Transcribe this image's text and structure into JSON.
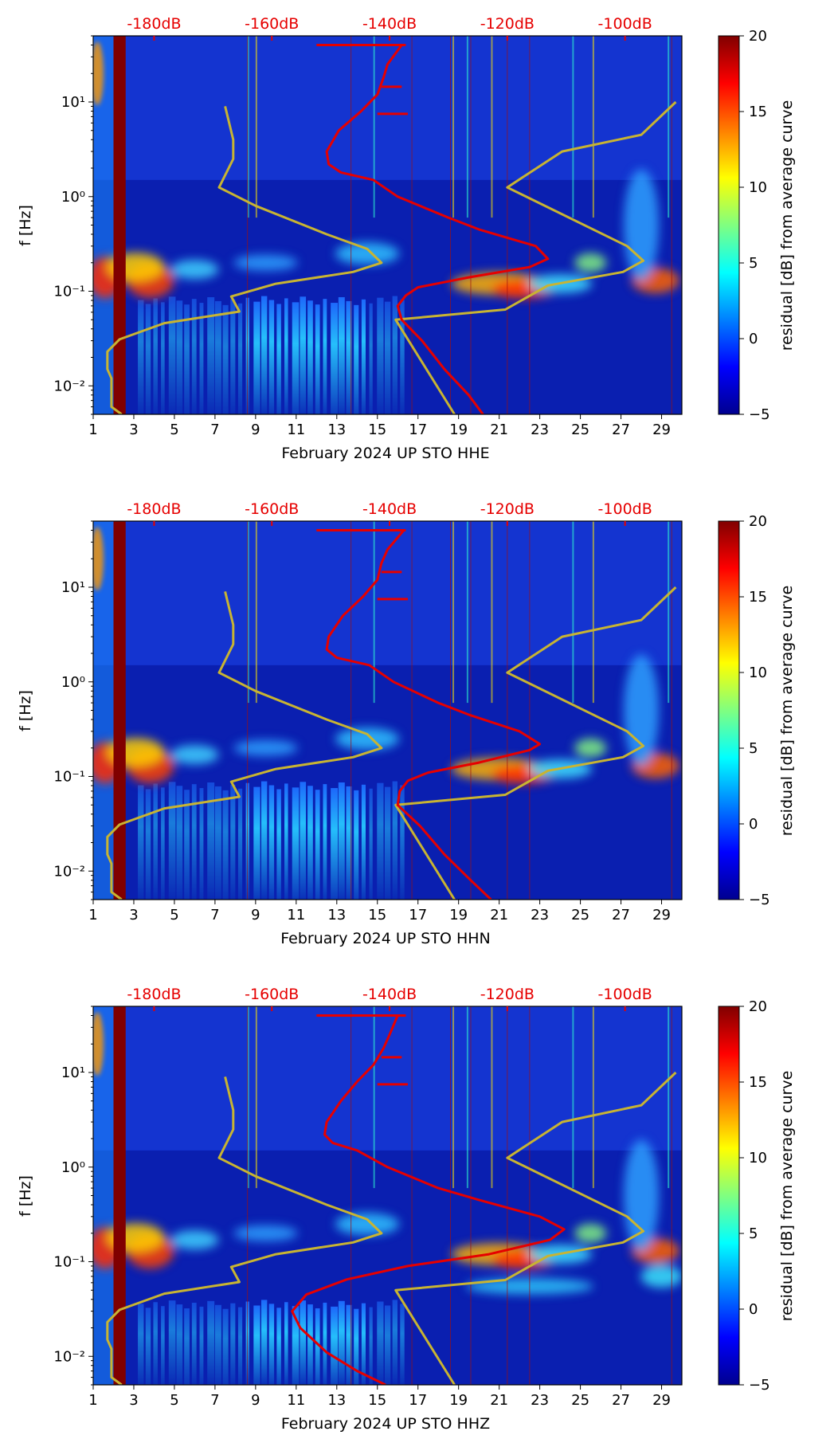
{
  "figure": {
    "colorbar_label": "residual [dB] from average curve",
    "ylabel": "f [Hz]"
  },
  "chart_data": [
    {
      "type": "heatmap",
      "title": "",
      "xlabel": "February 2024 UP STO  HHE",
      "ylabel": "f [Hz]",
      "x_ticks": [
        1,
        3,
        5,
        7,
        9,
        11,
        13,
        15,
        17,
        19,
        21,
        23,
        25,
        27,
        29
      ],
      "x_range": [
        1,
        30
      ],
      "y_ticks": [
        0.01,
        0.1,
        1,
        10
      ],
      "y_tick_labels": [
        "10⁻²",
        "10⁻¹",
        "10⁰",
        "10¹"
      ],
      "y_range": [
        0.005,
        50
      ],
      "top_axis_labels": [
        "-180dB",
        "-160dB",
        "-140dB",
        "-120dB",
        "-100dB"
      ],
      "top_axis_positions": [
        4,
        9.8,
        15.6,
        21.4,
        27.2
      ],
      "colorbar": {
        "label": "residual [dB] from average curve",
        "ticks": [
          -5,
          0,
          5,
          10,
          15,
          20
        ],
        "range": [
          -5,
          20
        ]
      },
      "series": [
        {
          "name": "NLNM/NHNM reference (low)",
          "color": "#c8b432",
          "points": [
            [
              2.4,
              0.005
            ],
            [
              1.9,
              0.006
            ],
            [
              1.9,
              0.012
            ],
            [
              1.7,
              0.015
            ],
            [
              1.7,
              0.023
            ],
            [
              2.3,
              0.031
            ],
            [
              4.5,
              0.046
            ],
            [
              8.2,
              0.061
            ],
            [
              7.8,
              0.088
            ],
            [
              10.0,
              0.12
            ],
            [
              13.8,
              0.16
            ],
            [
              15.2,
              0.2
            ],
            [
              14.5,
              0.28
            ],
            [
              12.5,
              0.4
            ],
            [
              9.0,
              0.8
            ],
            [
              7.2,
              1.25
            ],
            [
              7.9,
              2.5
            ],
            [
              7.9,
              4.0
            ],
            [
              7.5,
              9.0
            ]
          ]
        },
        {
          "name": "NLNM/NHNM reference (high)",
          "color": "#c8b432",
          "points": [
            [
              18.8,
              0.005
            ],
            [
              15.9,
              0.05
            ],
            [
              21.3,
              0.064
            ],
            [
              23.4,
              0.115
            ],
            [
              27.1,
              0.16
            ],
            [
              28.1,
              0.21
            ],
            [
              27.3,
              0.3
            ],
            [
              21.4,
              1.25
            ],
            [
              24.1,
              3.0
            ],
            [
              28.0,
              4.5
            ],
            [
              29.7,
              10.0
            ]
          ]
        },
        {
          "name": "median PSD curve",
          "color": "#e60000",
          "points": [
            [
              20.2,
              0.005
            ],
            [
              19.5,
              0.008
            ],
            [
              18.3,
              0.015
            ],
            [
              17.2,
              0.03
            ],
            [
              16.2,
              0.05
            ],
            [
              16.0,
              0.07
            ],
            [
              16.4,
              0.09
            ],
            [
              17.0,
              0.11
            ],
            [
              19.5,
              0.14
            ],
            [
              22.5,
              0.18
            ],
            [
              23.4,
              0.22
            ],
            [
              22.8,
              0.3
            ],
            [
              20.0,
              0.45
            ],
            [
              18.5,
              0.6
            ],
            [
              16.0,
              1.0
            ],
            [
              14.8,
              1.5
            ],
            [
              13.2,
              1.8
            ],
            [
              12.6,
              2.2
            ],
            [
              12.5,
              3.0
            ],
            [
              13.1,
              5.0
            ],
            [
              14.2,
              8.0
            ],
            [
              15.0,
              12.0
            ],
            [
              15.3,
              18.0
            ],
            [
              15.5,
              25.0
            ],
            [
              16.2,
              40.0
            ]
          ]
        }
      ]
    },
    {
      "type": "heatmap",
      "title": "",
      "xlabel": "February 2024 UP STO  HHN",
      "ylabel": "f [Hz]",
      "x_ticks": [
        1,
        3,
        5,
        7,
        9,
        11,
        13,
        15,
        17,
        19,
        21,
        23,
        25,
        27,
        29
      ],
      "x_range": [
        1,
        30
      ],
      "y_ticks": [
        0.01,
        0.1,
        1,
        10
      ],
      "y_tick_labels": [
        "10⁻²",
        "10⁻¹",
        "10⁰",
        "10¹"
      ],
      "y_range": [
        0.005,
        50
      ],
      "top_axis_labels": [
        "-180dB",
        "-160dB",
        "-140dB",
        "-120dB",
        "-100dB"
      ],
      "top_axis_positions": [
        4,
        9.8,
        15.6,
        21.4,
        27.2
      ],
      "colorbar": {
        "label": "residual [dB] from average curve",
        "ticks": [
          -5,
          0,
          5,
          10,
          15,
          20
        ],
        "range": [
          -5,
          20
        ]
      },
      "series": [
        {
          "name": "NLNM/NHNM reference (low)",
          "color": "#c8b432",
          "points": [
            [
              2.4,
              0.005
            ],
            [
              1.9,
              0.006
            ],
            [
              1.9,
              0.012
            ],
            [
              1.7,
              0.015
            ],
            [
              1.7,
              0.023
            ],
            [
              2.3,
              0.031
            ],
            [
              4.5,
              0.046
            ],
            [
              8.2,
              0.061
            ],
            [
              7.8,
              0.088
            ],
            [
              10.0,
              0.12
            ],
            [
              13.8,
              0.16
            ],
            [
              15.2,
              0.2
            ],
            [
              14.5,
              0.28
            ],
            [
              12.5,
              0.4
            ],
            [
              9.0,
              0.8
            ],
            [
              7.2,
              1.25
            ],
            [
              7.9,
              2.5
            ],
            [
              7.9,
              4.0
            ],
            [
              7.5,
              9.0
            ]
          ]
        },
        {
          "name": "NLNM/NHNM reference (high)",
          "color": "#c8b432",
          "points": [
            [
              18.8,
              0.005
            ],
            [
              15.9,
              0.05
            ],
            [
              21.3,
              0.064
            ],
            [
              23.4,
              0.115
            ],
            [
              27.1,
              0.16
            ],
            [
              28.1,
              0.21
            ],
            [
              27.3,
              0.3
            ],
            [
              21.4,
              1.25
            ],
            [
              24.1,
              3.0
            ],
            [
              28.0,
              4.5
            ],
            [
              29.7,
              10.0
            ]
          ]
        },
        {
          "name": "median PSD curve",
          "color": "#e60000",
          "points": [
            [
              20.6,
              0.005
            ],
            [
              19.6,
              0.008
            ],
            [
              18.3,
              0.015
            ],
            [
              17.1,
              0.03
            ],
            [
              16.0,
              0.05
            ],
            [
              16.1,
              0.07
            ],
            [
              16.5,
              0.09
            ],
            [
              17.5,
              0.11
            ],
            [
              20.0,
              0.14
            ],
            [
              22.5,
              0.19
            ],
            [
              23.0,
              0.22
            ],
            [
              22.0,
              0.3
            ],
            [
              19.5,
              0.45
            ],
            [
              18.0,
              0.6
            ],
            [
              15.8,
              1.0
            ],
            [
              14.6,
              1.5
            ],
            [
              13.0,
              1.8
            ],
            [
              12.5,
              2.2
            ],
            [
              12.6,
              3.0
            ],
            [
              13.3,
              5.0
            ],
            [
              14.3,
              8.0
            ],
            [
              15.0,
              12.0
            ],
            [
              15.2,
              18.0
            ],
            [
              15.5,
              25.0
            ],
            [
              16.3,
              40.0
            ]
          ]
        }
      ]
    },
    {
      "type": "heatmap",
      "title": "",
      "xlabel": "February 2024 UP STO  HHZ",
      "ylabel": "f [Hz]",
      "x_ticks": [
        1,
        3,
        5,
        7,
        9,
        11,
        13,
        15,
        17,
        19,
        21,
        23,
        25,
        27,
        29
      ],
      "x_range": [
        1,
        30
      ],
      "y_ticks": [
        0.01,
        0.1,
        1,
        10
      ],
      "y_tick_labels": [
        "10⁻²",
        "10⁻¹",
        "10⁰",
        "10¹"
      ],
      "y_range": [
        0.005,
        50
      ],
      "top_axis_labels": [
        "-180dB",
        "-160dB",
        "-140dB",
        "-120dB",
        "-100dB"
      ],
      "top_axis_positions": [
        4,
        9.8,
        15.6,
        21.4,
        27.2
      ],
      "colorbar": {
        "label": "residual [dB] from average curve",
        "ticks": [
          -5,
          0,
          5,
          10,
          15,
          20
        ],
        "range": [
          -5,
          20
        ]
      },
      "series": [
        {
          "name": "NLNM/NHNM reference (low)",
          "color": "#c8b432",
          "points": [
            [
              2.4,
              0.005
            ],
            [
              1.9,
              0.006
            ],
            [
              1.9,
              0.012
            ],
            [
              1.7,
              0.015
            ],
            [
              1.7,
              0.023
            ],
            [
              2.3,
              0.031
            ],
            [
              4.5,
              0.046
            ],
            [
              8.2,
              0.061
            ],
            [
              7.8,
              0.088
            ],
            [
              10.0,
              0.12
            ],
            [
              13.8,
              0.16
            ],
            [
              15.2,
              0.2
            ],
            [
              14.5,
              0.28
            ],
            [
              12.5,
              0.4
            ],
            [
              9.0,
              0.8
            ],
            [
              7.2,
              1.25
            ],
            [
              7.9,
              2.5
            ],
            [
              7.9,
              4.0
            ],
            [
              7.5,
              9.0
            ]
          ]
        },
        {
          "name": "NLNM/NHNM reference (high)",
          "color": "#c8b432",
          "points": [
            [
              18.8,
              0.005
            ],
            [
              15.9,
              0.05
            ],
            [
              21.3,
              0.064
            ],
            [
              23.4,
              0.115
            ],
            [
              27.1,
              0.16
            ],
            [
              28.1,
              0.21
            ],
            [
              27.3,
              0.3
            ],
            [
              21.4,
              1.25
            ],
            [
              24.1,
              3.0
            ],
            [
              28.0,
              4.5
            ],
            [
              29.7,
              10.0
            ]
          ]
        },
        {
          "name": "median PSD curve",
          "color": "#e60000",
          "points": [
            [
              15.4,
              0.005
            ],
            [
              14.0,
              0.007
            ],
            [
              12.5,
              0.011
            ],
            [
              11.2,
              0.02
            ],
            [
              10.8,
              0.03
            ],
            [
              11.5,
              0.045
            ],
            [
              13.5,
              0.065
            ],
            [
              16.5,
              0.09
            ],
            [
              20.5,
              0.12
            ],
            [
              23.5,
              0.17
            ],
            [
              24.2,
              0.22
            ],
            [
              23.0,
              0.3
            ],
            [
              20.0,
              0.45
            ],
            [
              18.0,
              0.6
            ],
            [
              15.5,
              1.0
            ],
            [
              14.0,
              1.5
            ],
            [
              12.8,
              1.8
            ],
            [
              12.4,
              2.2
            ],
            [
              12.5,
              3.0
            ],
            [
              13.2,
              5.0
            ],
            [
              14.0,
              8.0
            ],
            [
              14.8,
              12.0
            ],
            [
              15.3,
              18.0
            ],
            [
              15.6,
              25.0
            ],
            [
              16.0,
              40.0
            ]
          ]
        }
      ]
    }
  ]
}
